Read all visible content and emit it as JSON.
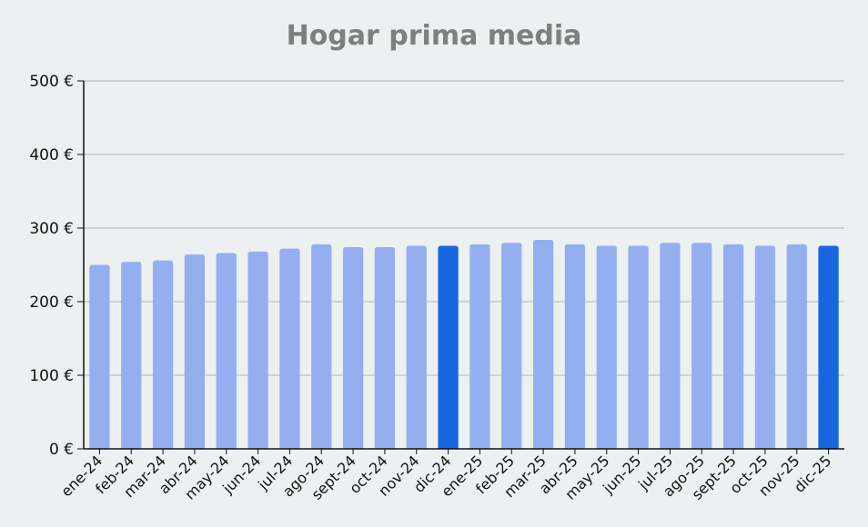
{
  "chart_data": {
    "type": "bar",
    "title": "Hogar prima media",
    "xlabel": "",
    "ylabel": "",
    "ylim": [
      0,
      500
    ],
    "yticks": [
      "0 €",
      "100 €",
      "200 €",
      "300 €",
      "400 €",
      "500 €"
    ],
    "grid": true,
    "categories": [
      "ene-24",
      "feb-24",
      "mar-24",
      "abr-24",
      "may-24",
      "jun-24",
      "jul-24",
      "ago-24",
      "sept-24",
      "oct-24",
      "nov-24",
      "dic-24",
      "ene-25",
      "feb-25",
      "mar-25",
      "abr-25",
      "may-25",
      "jun-25",
      "jul-25",
      "ago-25",
      "sept-25",
      "oct-25",
      "nov-25",
      "dic-25"
    ],
    "values": [
      250,
      254,
      256,
      264,
      266,
      268,
      272,
      278,
      274,
      274,
      276,
      276,
      278,
      280,
      284,
      278,
      276,
      276,
      280,
      280,
      278,
      276,
      278,
      276
    ],
    "highlighted": [
      "dic-24",
      "dic-25"
    ],
    "colors": {
      "bar": "#94afef",
      "highlight": "#1766e0",
      "grid": "#c4c8cc",
      "axis": "#111111",
      "title": "#7f7f7f"
    }
  }
}
